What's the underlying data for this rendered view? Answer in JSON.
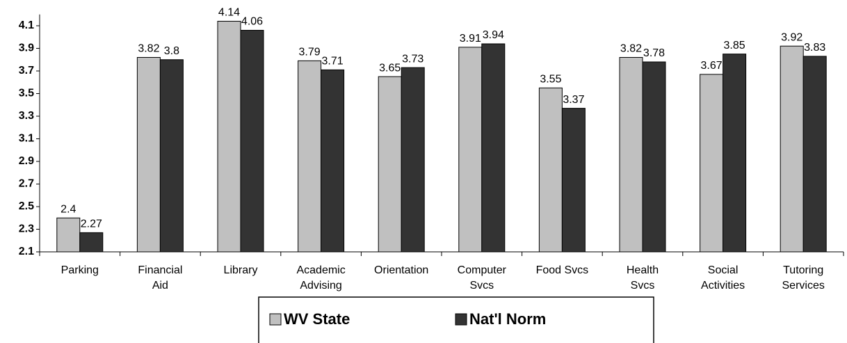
{
  "chart_data": {
    "type": "bar",
    "categories": [
      "Parking",
      "Financial Aid",
      "Library",
      "Academic Advising",
      "Orientation",
      "Computer Svcs",
      "Food Svcs",
      "Health Svcs",
      "Social Activities",
      "Tutoring Services"
    ],
    "series": [
      {
        "name": "WV State",
        "color": "#c0c0c0",
        "values": [
          2.4,
          3.82,
          4.14,
          3.79,
          3.65,
          3.91,
          3.55,
          3.82,
          3.67,
          3.92
        ]
      },
      {
        "name": "Nat'l Norm",
        "color": "#333333",
        "values": [
          2.27,
          3.8,
          4.06,
          3.71,
          3.73,
          3.94,
          3.37,
          3.78,
          3.85,
          3.83
        ]
      }
    ],
    "ylim": [
      2.1,
      4.2
    ],
    "yticks": [
      2.1,
      2.3,
      2.5,
      2.7,
      2.9,
      3.1,
      3.3,
      3.5,
      3.7,
      3.9,
      4.1
    ],
    "grid": false,
    "legend": "bottom"
  }
}
